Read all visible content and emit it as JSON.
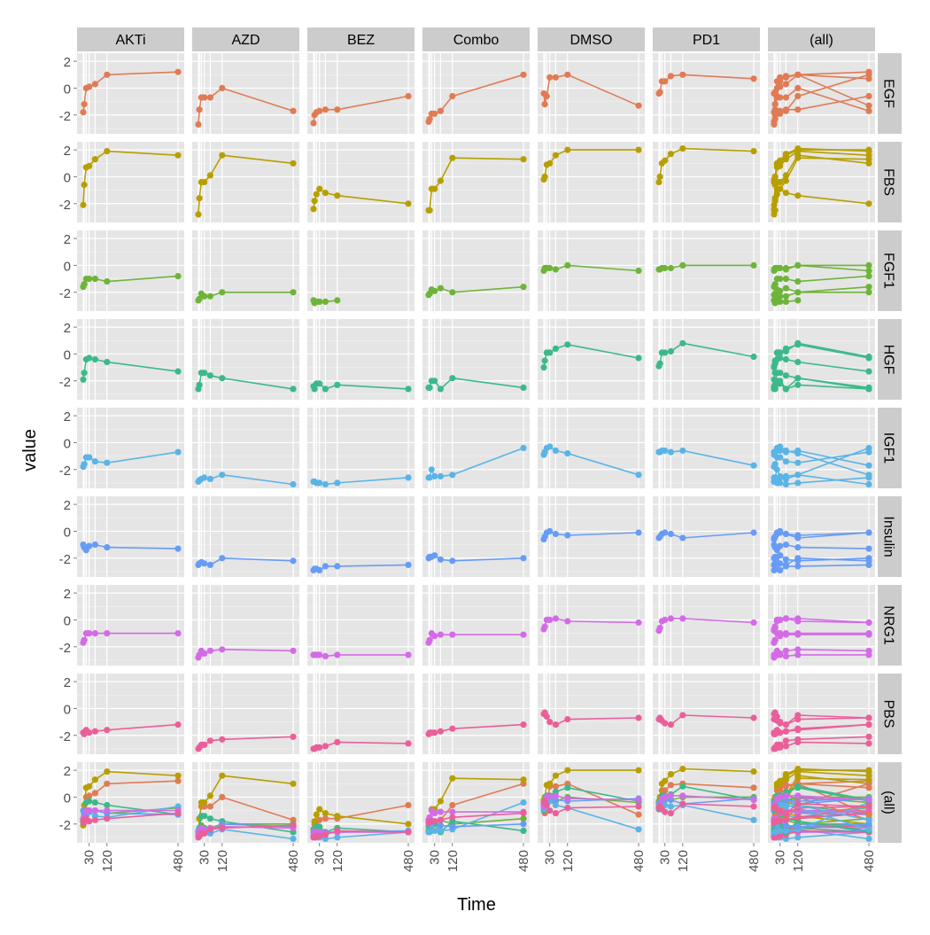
{
  "chart_data": {
    "type": "line",
    "xlabel": "Time",
    "ylabel": "value",
    "x": [
      0,
      5,
      15,
      30,
      60,
      120,
      480
    ],
    "x_ticks": [
      30,
      120,
      480
    ],
    "y_ticks": [
      2,
      0,
      -2
    ],
    "ylim": [
      -3.4,
      2.6
    ],
    "grid": true,
    "legend": "none",
    "columns": [
      "AKTi",
      "AZD",
      "BEZ",
      "Combo",
      "DMSO",
      "PD1",
      "(all)"
    ],
    "rows": [
      "EGF",
      "FBS",
      "FGF1",
      "HGF",
      "IGF1",
      "Insulin",
      "NRG1",
      "PBS",
      "(all)"
    ],
    "row_colors": {
      "EGF": "#e07b54",
      "FBS": "#b79f00",
      "FGF1": "#6fb43a",
      "HGF": "#3cb98a",
      "IGF1": "#5ab4e6",
      "Insulin": "#679cf5",
      "NRG1": "#d36be6",
      "PBS": "#ea5f9a"
    },
    "series": {
      "EGF": {
        "AKTi": [
          -1.8,
          -1.2,
          0.0,
          0.1,
          0.3,
          1.0,
          1.2
        ],
        "AZD": [
          -2.7,
          -1.6,
          -0.7,
          -0.7,
          -0.7,
          0.0,
          -1.7
        ],
        "BEZ": [
          -2.6,
          -2.0,
          -1.8,
          -1.7,
          -1.6,
          -1.6,
          -0.6
        ],
        "Combo": [
          -2.5,
          -2.3,
          -1.9,
          -1.9,
          -1.7,
          -0.6,
          1.0
        ],
        "DMSO": [
          -0.4,
          -1.2,
          -0.6,
          0.8,
          0.8,
          1.0,
          -1.3
        ],
        "PD1": [
          -0.4,
          -0.3,
          0.5,
          0.5,
          0.9,
          1.0,
          0.7
        ]
      },
      "FBS": {
        "AKTi": [
          -2.1,
          -0.6,
          0.7,
          0.8,
          1.3,
          1.9,
          1.6
        ],
        "AZD": [
          -2.8,
          -1.6,
          -0.4,
          -0.4,
          0.1,
          1.6,
          1.0
        ],
        "BEZ": [
          -2.4,
          -1.8,
          -1.3,
          -0.9,
          -1.2,
          -1.4,
          -2.0
        ],
        "Combo": [
          -2.5,
          -2.5,
          -0.9,
          -0.9,
          -0.3,
          1.4,
          1.3
        ],
        "DMSO": [
          -0.2,
          0.0,
          0.9,
          1.0,
          1.6,
          2.0,
          2.0
        ],
        "PD1": [
          -0.4,
          0.0,
          1.0,
          1.2,
          1.7,
          2.1,
          1.9
        ]
      },
      "FGF1": {
        "AKTi": [
          -1.6,
          -1.4,
          -1.0,
          -1.0,
          -1.0,
          -1.2,
          -0.8
        ],
        "AZD": [
          -2.6,
          -2.5,
          -2.1,
          -2.3,
          -2.3,
          -2.0,
          -2.0
        ],
        "BEZ": [
          -2.6,
          -2.8,
          -2.7,
          -2.7,
          -2.7,
          -2.6,
          null
        ],
        "Combo": [
          -2.2,
          -2.1,
          -1.8,
          -1.9,
          -1.7,
          -2.0,
          -1.6
        ],
        "DMSO": [
          -0.4,
          -0.2,
          -0.2,
          -0.2,
          -0.3,
          0.0,
          -0.4
        ],
        "PD1": [
          -0.3,
          -0.3,
          -0.2,
          -0.2,
          -0.2,
          0.0,
          0.0
        ]
      },
      "HGF": {
        "AKTi": [
          -1.9,
          -1.4,
          -0.4,
          -0.3,
          -0.4,
          -0.6,
          -1.3
        ],
        "AZD": [
          -2.6,
          -2.3,
          -1.4,
          -1.4,
          -1.6,
          -1.8,
          -2.6
        ],
        "BEZ": [
          -2.4,
          -2.6,
          -2.2,
          -2.2,
          -2.6,
          -2.3,
          -2.6
        ],
        "Combo": [
          -2.5,
          -2.5,
          -2.0,
          -2.0,
          -2.6,
          -1.8,
          -2.5
        ],
        "DMSO": [
          -1.0,
          -0.5,
          0.1,
          0.1,
          0.4,
          0.7,
          -0.3
        ],
        "PD1": [
          -0.9,
          -0.7,
          0.1,
          0.1,
          0.2,
          0.8,
          -0.2
        ]
      },
      "IGF1": {
        "AKTi": [
          -1.8,
          -1.6,
          -1.1,
          -1.1,
          -1.4,
          -1.5,
          -0.7
        ],
        "AZD": [
          -2.9,
          -2.8,
          -2.7,
          -2.6,
          -2.7,
          -2.4,
          -3.1
        ],
        "BEZ": [
          -2.9,
          -2.9,
          -3.0,
          -3.0,
          -3.1,
          -3.0,
          -2.6
        ],
        "Combo": [
          -2.6,
          -2.6,
          -2.0,
          -2.5,
          -2.5,
          -2.4,
          -0.4
        ],
        "DMSO": [
          -0.9,
          -0.7,
          -0.4,
          -0.3,
          -0.6,
          -0.8,
          -2.4
        ],
        "PD1": [
          -0.7,
          -0.7,
          -0.6,
          -0.6,
          -0.7,
          -0.6,
          -1.7
        ]
      },
      "Insulin": {
        "AKTi": [
          -1.0,
          -1.2,
          -1.4,
          -1.1,
          -1.0,
          -1.2,
          -1.3
        ],
        "AZD": [
          -2.5,
          -2.4,
          -2.3,
          -2.4,
          -2.5,
          -2.0,
          -2.2
        ],
        "BEZ": [
          -2.9,
          -2.8,
          -2.8,
          -2.9,
          -2.6,
          -2.6,
          -2.5
        ],
        "Combo": [
          -2.0,
          -1.9,
          -1.9,
          -1.8,
          -2.1,
          -2.2,
          -2.0
        ],
        "DMSO": [
          -0.6,
          -0.4,
          -0.1,
          0.0,
          -0.2,
          -0.3,
          -0.1
        ],
        "PD1": [
          -0.5,
          -0.4,
          -0.2,
          -0.1,
          -0.2,
          -0.5,
          -0.1
        ]
      },
      "NRG1": {
        "AKTi": [
          -1.7,
          -1.5,
          -1.0,
          -1.0,
          -1.0,
          -1.0,
          -1.0
        ],
        "AZD": [
          -2.8,
          -2.6,
          -2.3,
          -2.5,
          -2.3,
          -2.2,
          -2.3
        ],
        "BEZ": [
          -2.6,
          -2.6,
          -2.6,
          -2.6,
          -2.7,
          -2.6,
          -2.6
        ],
        "Combo": [
          -1.7,
          -1.5,
          -1.0,
          -1.2,
          -1.1,
          -1.1,
          -1.1
        ],
        "DMSO": [
          -0.7,
          -0.5,
          0.0,
          0.0,
          0.1,
          -0.1,
          -0.2
        ],
        "PD1": [
          -0.8,
          -0.6,
          -0.1,
          0.0,
          0.1,
          0.1,
          -0.2
        ]
      },
      "PBS": {
        "AKTi": [
          -1.8,
          -1.9,
          -1.6,
          -1.8,
          -1.7,
          -1.6,
          -1.2
        ],
        "AZD": [
          -3.0,
          -2.9,
          -2.7,
          -2.7,
          -2.4,
          -2.3,
          -2.1
        ],
        "BEZ": [
          -3.0,
          -3.0,
          -2.9,
          -2.9,
          -2.8,
          -2.5,
          -2.6
        ],
        "Combo": [
          -1.9,
          -1.8,
          -1.8,
          -1.8,
          -1.7,
          -1.5,
          -1.2
        ],
        "DMSO": [
          -0.4,
          -0.3,
          -0.6,
          -1.0,
          -1.2,
          -0.8,
          -0.7
        ],
        "PD1": [
          -0.8,
          -0.7,
          -0.9,
          -1.1,
          -1.2,
          -0.5,
          -0.7
        ]
      }
    }
  }
}
